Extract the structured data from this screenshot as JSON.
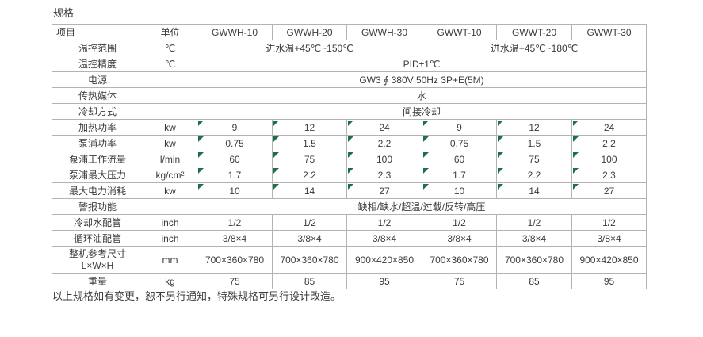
{
  "page": {
    "title": "规格",
    "footer": "以上规格如有变更，恕不另行通知，特殊规格可另行设计改造。"
  },
  "colors": {
    "text": "#3b3b3b",
    "border": "#b3b3b3",
    "flag_green": "#1e7145",
    "background": "#ffffff"
  },
  "table": {
    "columns": [
      "项目",
      "单位",
      "GWWH-10",
      "GWWH-20",
      "GWWH-30",
      "GWWT-10",
      "GWWT-20",
      "GWWT-30"
    ],
    "rows": [
      {
        "label": "温控范围",
        "unit": "℃",
        "merged": [
          {
            "text": "进水温+45℃~150℃",
            "span": 3
          },
          {
            "text": "进水温+45℃~180℃",
            "span": 3
          }
        ]
      },
      {
        "label": "温控精度",
        "unit": "℃",
        "merged": [
          {
            "text": "PID±1℃",
            "span": 6
          }
        ]
      },
      {
        "label": "电源",
        "unit": "",
        "merged": [
          {
            "text": "GW3 ∮ 380V 50Hz 3P+E(5M)",
            "span": 6
          }
        ]
      },
      {
        "label": "传热媒体",
        "unit": "",
        "merged": [
          {
            "text": "水",
            "span": 6
          }
        ]
      },
      {
        "label": "冷却方式",
        "unit": "",
        "merged": [
          {
            "text": "间接冷却",
            "span": 6
          }
        ]
      },
      {
        "label": "加热功率",
        "unit": "kw",
        "flags": true,
        "values": [
          "9",
          "12",
          "24",
          "9",
          "12",
          "24"
        ]
      },
      {
        "label": "泵浦功率",
        "unit": "kw",
        "flags": true,
        "values": [
          "0.75",
          "1.5",
          "2.2",
          "0.75",
          "1.5",
          "2.2"
        ]
      },
      {
        "label": "泵浦工作流量",
        "unit": "l/min",
        "flags": true,
        "values": [
          "60",
          "75",
          "100",
          "60",
          "75",
          "100"
        ]
      },
      {
        "label": "泵浦最大压力",
        "unit": "kg/cm²",
        "flags": true,
        "values": [
          "1.7",
          "2.2",
          "2.3",
          "1.7",
          "2.2",
          "2.3"
        ]
      },
      {
        "label": "最大电力消耗",
        "unit": "kw",
        "flags": true,
        "values": [
          "10",
          "14",
          "27",
          "10",
          "14",
          "27"
        ]
      },
      {
        "label": "警报功能",
        "unit": "",
        "merged": [
          {
            "text": "缺相/缺水/超温/过载/反转/高压",
            "span": 6
          }
        ]
      },
      {
        "label": "冷却水配管",
        "unit": "inch",
        "values": [
          "1/2",
          "1/2",
          "1/2",
          "1/2",
          "1/2",
          "1/2"
        ]
      },
      {
        "label": "循环油配管",
        "unit": "inch",
        "values": [
          "3/8×4",
          "3/8×4",
          "3/8×4",
          "3/8×4",
          "3/8×4",
          "3/8×4"
        ]
      },
      {
        "label": "整机参考尺寸",
        "label_line2": "L×W×H",
        "unit": "mm",
        "tall": true,
        "values": [
          "700×360×780",
          "700×360×780",
          "900×420×850",
          "700×360×780",
          "700×360×780",
          "900×420×850"
        ]
      },
      {
        "label": "重量",
        "unit": "kg",
        "values": [
          "75",
          "85",
          "95",
          "75",
          "85",
          "95"
        ]
      }
    ]
  }
}
